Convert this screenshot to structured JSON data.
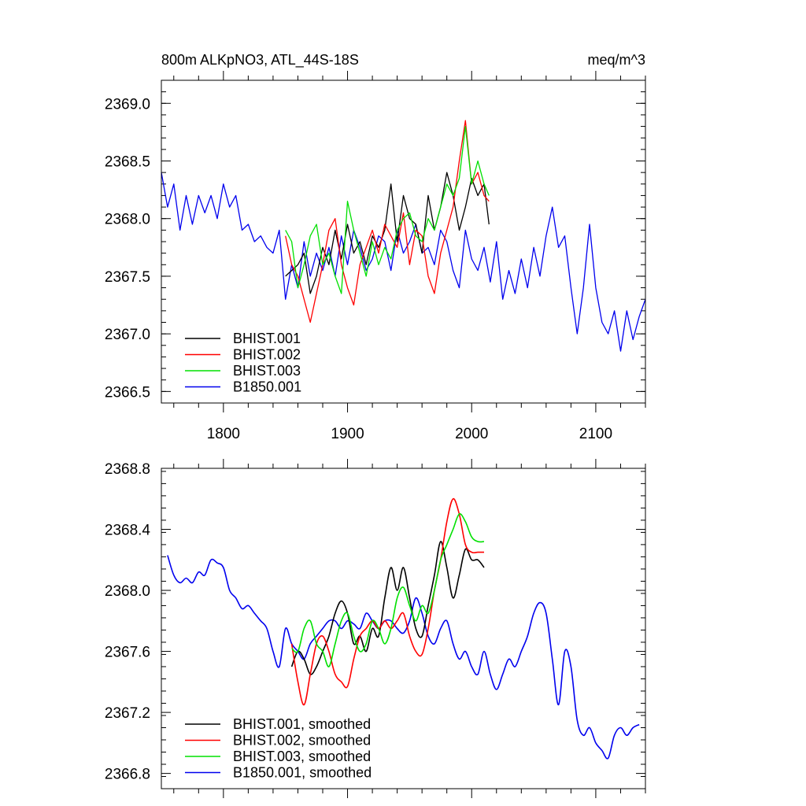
{
  "chart_data": [
    {
      "type": "line",
      "title": "800m ALKpNO3, ATL_44S-18S",
      "units": "meq/m^3",
      "xlabel": "",
      "ylabel": "",
      "xlim": [
        1750,
        2140
      ],
      "ylim": [
        2366.4,
        2369.2
      ],
      "xticks": [
        1800,
        1900,
        2000,
        2100
      ],
      "yticks": [
        2366.5,
        2367.0,
        2367.5,
        2368.0,
        2368.5,
        2369.0
      ],
      "ytick_labels": [
        "2366.5",
        "2367.0",
        "2367.5",
        "2368.0",
        "2368.5",
        "2369.0"
      ],
      "xtick_labels": [
        "1800",
        "1900",
        "2000",
        "2100"
      ],
      "legend_position": "bottom-left",
      "series": [
        {
          "name": "BHIST.001",
          "color": "#000000",
          "x": [
            1850,
            1855,
            1860,
            1865,
            1870,
            1875,
            1880,
            1885,
            1890,
            1895,
            1900,
            1905,
            1910,
            1915,
            1920,
            1925,
            1930,
            1935,
            1940,
            1945,
            1950,
            1955,
            1960,
            1965,
            1970,
            1975,
            1980,
            1985,
            1990,
            1995,
            2000,
            2005,
            2010,
            2014
          ],
          "y": [
            2367.5,
            2367.55,
            2367.6,
            2367.7,
            2367.35,
            2367.5,
            2367.75,
            2367.6,
            2367.9,
            2367.65,
            2367.95,
            2367.7,
            2367.8,
            2367.6,
            2367.85,
            2367.75,
            2367.9,
            2368.3,
            2367.8,
            2368.2,
            2368.0,
            2367.95,
            2367.7,
            2368.2,
            2367.9,
            2368.1,
            2368.4,
            2368.2,
            2367.9,
            2368.1,
            2368.35,
            2368.2,
            2368.3,
            2367.95
          ]
        },
        {
          "name": "BHIST.002",
          "color": "#ff0000",
          "x": [
            1850,
            1855,
            1860,
            1865,
            1870,
            1875,
            1880,
            1885,
            1890,
            1895,
            1900,
            1905,
            1910,
            1915,
            1920,
            1925,
            1930,
            1935,
            1940,
            1945,
            1950,
            1955,
            1960,
            1965,
            1970,
            1975,
            1980,
            1985,
            1990,
            1995,
            2000,
            2005,
            2010,
            2014
          ],
          "y": [
            2367.85,
            2367.6,
            2367.5,
            2367.3,
            2367.1,
            2367.35,
            2367.6,
            2367.9,
            2368.0,
            2367.6,
            2367.4,
            2367.25,
            2367.6,
            2367.75,
            2367.9,
            2367.7,
            2367.95,
            2367.85,
            2367.75,
            2368.05,
            2367.6,
            2367.9,
            2367.85,
            2367.5,
            2367.35,
            2367.7,
            2367.9,
            2368.1,
            2368.5,
            2368.85,
            2368.3,
            2368.4,
            2368.2,
            2368.15
          ]
        },
        {
          "name": "BHIST.003",
          "color": "#00e000",
          "x": [
            1850,
            1855,
            1860,
            1865,
            1870,
            1875,
            1880,
            1885,
            1890,
            1895,
            1900,
            1905,
            1910,
            1915,
            1920,
            1925,
            1930,
            1935,
            1940,
            1945,
            1950,
            1955,
            1960,
            1965,
            1970,
            1975,
            1980,
            1985,
            1990,
            1995,
            2000,
            2005,
            2010,
            2014
          ],
          "y": [
            2367.9,
            2367.8,
            2367.4,
            2367.6,
            2367.85,
            2367.95,
            2367.6,
            2367.7,
            2367.5,
            2367.35,
            2368.15,
            2367.9,
            2367.7,
            2367.5,
            2367.8,
            2367.6,
            2367.75,
            2367.65,
            2367.9,
            2368.0,
            2368.05,
            2367.85,
            2367.8,
            2368.0,
            2367.9,
            2368.1,
            2368.3,
            2368.2,
            2368.35,
            2368.8,
            2368.3,
            2368.5,
            2368.3,
            2368.2
          ]
        },
        {
          "name": "B1850.001",
          "color": "#0000ee",
          "x": [
            1750,
            1755,
            1760,
            1765,
            1770,
            1775,
            1780,
            1785,
            1790,
            1795,
            1800,
            1805,
            1810,
            1815,
            1820,
            1825,
            1830,
            1835,
            1840,
            1845,
            1850,
            1855,
            1860,
            1865,
            1870,
            1875,
            1880,
            1885,
            1890,
            1895,
            1900,
            1905,
            1910,
            1915,
            1920,
            1925,
            1930,
            1935,
            1940,
            1945,
            1950,
            1955,
            1960,
            1965,
            1970,
            1975,
            1980,
            1985,
            1990,
            1995,
            2000,
            2005,
            2010,
            2015,
            2020,
            2025,
            2030,
            2035,
            2040,
            2045,
            2050,
            2055,
            2060,
            2065,
            2070,
            2075,
            2080,
            2085,
            2090,
            2095,
            2100,
            2105,
            2110,
            2115,
            2120,
            2125,
            2130,
            2135,
            2140
          ],
          "y": [
            2368.4,
            2368.1,
            2368.3,
            2367.9,
            2368.2,
            2367.95,
            2368.2,
            2368.05,
            2368.2,
            2368.0,
            2368.3,
            2368.1,
            2368.2,
            2367.9,
            2367.95,
            2367.8,
            2367.85,
            2367.75,
            2367.7,
            2367.9,
            2367.3,
            2367.6,
            2367.4,
            2367.8,
            2367.5,
            2367.7,
            2367.55,
            2367.75,
            2367.5,
            2367.85,
            2367.6,
            2367.9,
            2367.75,
            2367.55,
            2367.65,
            2367.85,
            2367.8,
            2367.55,
            2367.9,
            2367.7,
            2367.8,
            2367.95,
            2367.7,
            2367.75,
            2367.6,
            2367.9,
            2367.8,
            2367.55,
            2367.4,
            2367.9,
            2367.65,
            2367.55,
            2367.75,
            2367.45,
            2367.8,
            2367.3,
            2367.55,
            2367.35,
            2367.65,
            2367.4,
            2367.75,
            2367.5,
            2367.85,
            2368.1,
            2367.75,
            2367.85,
            2367.4,
            2367.0,
            2367.4,
            2367.95,
            2367.4,
            2367.1,
            2367.0,
            2367.2,
            2366.85,
            2367.2,
            2366.95,
            2367.15,
            2367.3
          ]
        }
      ]
    },
    {
      "type": "line",
      "title": "",
      "xlabel": "",
      "ylabel": "",
      "xlim": [
        1750,
        2140
      ],
      "ylim": [
        2366.7,
        2368.8
      ],
      "xticks": [
        1800,
        1900,
        2000,
        2100
      ],
      "yticks": [
        2366.8,
        2367.2,
        2367.6,
        2368.0,
        2368.4,
        2368.8
      ],
      "ytick_labels": [
        "2366.8",
        "2367.2",
        "2367.6",
        "2368.0",
        "2368.4",
        "2368.8"
      ],
      "legend_position": "bottom-left",
      "series": [
        {
          "name": "BHIST.001, smoothed",
          "color": "#000000",
          "x": [
            1855,
            1860,
            1865,
            1870,
            1875,
            1880,
            1885,
            1890,
            1895,
            1900,
            1905,
            1910,
            1915,
            1920,
            1925,
            1930,
            1935,
            1940,
            1945,
            1950,
            1955,
            1960,
            1965,
            1970,
            1975,
            1980,
            1985,
            1990,
            1995,
            2000,
            2005,
            2010
          ],
          "y": [
            2367.5,
            2367.6,
            2367.55,
            2367.45,
            2367.5,
            2367.6,
            2367.7,
            2367.85,
            2367.93,
            2367.85,
            2367.65,
            2367.7,
            2367.6,
            2367.75,
            2367.7,
            2367.95,
            2368.15,
            2368.0,
            2368.15,
            2367.95,
            2367.75,
            2367.7,
            2367.9,
            2368.1,
            2368.32,
            2368.15,
            2367.95,
            2368.1,
            2368.27,
            2368.2,
            2368.2,
            2368.15
          ]
        },
        {
          "name": "BHIST.002, smoothed",
          "color": "#ff0000",
          "x": [
            1855,
            1860,
            1865,
            1870,
            1875,
            1880,
            1885,
            1890,
            1895,
            1900,
            1905,
            1910,
            1915,
            1920,
            1925,
            1930,
            1935,
            1940,
            1945,
            1950,
            1955,
            1960,
            1965,
            1970,
            1975,
            1980,
            1985,
            1990,
            1995,
            2000,
            2005,
            2010
          ],
          "y": [
            2367.65,
            2367.4,
            2367.25,
            2367.45,
            2367.65,
            2367.7,
            2367.6,
            2367.45,
            2367.4,
            2367.37,
            2367.55,
            2367.7,
            2367.75,
            2367.8,
            2367.75,
            2367.8,
            2367.75,
            2367.8,
            2367.85,
            2367.7,
            2367.6,
            2367.58,
            2367.75,
            2368.0,
            2368.2,
            2368.45,
            2368.6,
            2368.5,
            2368.3,
            2368.25,
            2368.25,
            2368.25
          ]
        },
        {
          "name": "BHIST.003, smoothed",
          "color": "#00e000",
          "x": [
            1855,
            1860,
            1865,
            1870,
            1875,
            1880,
            1885,
            1890,
            1895,
            1900,
            1905,
            1910,
            1915,
            1920,
            1925,
            1930,
            1935,
            1940,
            1945,
            1950,
            1955,
            1960,
            1965,
            1970,
            1975,
            1980,
            1985,
            1990,
            1995,
            2000,
            2005,
            2010
          ],
          "y": [
            2367.62,
            2367.6,
            2367.75,
            2367.8,
            2367.65,
            2367.6,
            2367.5,
            2367.65,
            2367.8,
            2367.85,
            2367.7,
            2367.6,
            2367.65,
            2367.8,
            2367.75,
            2367.65,
            2367.75,
            2367.95,
            2368.02,
            2367.9,
            2367.8,
            2367.9,
            2367.85,
            2368.0,
            2368.2,
            2368.3,
            2368.4,
            2368.5,
            2368.45,
            2368.35,
            2368.32,
            2368.32
          ]
        },
        {
          "name": "B1850.001, smoothed",
          "color": "#0000ee",
          "x": [
            1755,
            1760,
            1765,
            1770,
            1775,
            1780,
            1785,
            1790,
            1795,
            1800,
            1805,
            1810,
            1815,
            1820,
            1825,
            1830,
            1835,
            1840,
            1845,
            1850,
            1855,
            1860,
            1865,
            1870,
            1875,
            1880,
            1885,
            1890,
            1895,
            1900,
            1905,
            1910,
            1915,
            1920,
            1925,
            1930,
            1935,
            1940,
            1945,
            1950,
            1955,
            1960,
            1965,
            1970,
            1975,
            1980,
            1985,
            1990,
            1995,
            2000,
            2005,
            2010,
            2015,
            2020,
            2025,
            2030,
            2035,
            2040,
            2045,
            2050,
            2055,
            2060,
            2065,
            2070,
            2075,
            2080,
            2085,
            2090,
            2095,
            2100,
            2105,
            2110,
            2115,
            2120,
            2125,
            2130,
            2135
          ],
          "y": [
            2368.23,
            2368.1,
            2368.05,
            2368.08,
            2368.05,
            2368.12,
            2368.1,
            2368.2,
            2368.18,
            2368.15,
            2368.0,
            2367.95,
            2367.88,
            2367.9,
            2367.85,
            2367.8,
            2367.75,
            2367.6,
            2367.5,
            2367.75,
            2367.65,
            2367.6,
            2367.55,
            2367.65,
            2367.7,
            2367.75,
            2367.8,
            2367.8,
            2367.75,
            2367.8,
            2367.78,
            2367.75,
            2367.85,
            2367.8,
            2367.75,
            2367.8,
            2367.8,
            2367.75,
            2367.72,
            2367.8,
            2367.95,
            2367.85,
            2367.7,
            2367.65,
            2367.75,
            2367.8,
            2367.65,
            2367.55,
            2367.6,
            2367.5,
            2367.45,
            2367.6,
            2367.45,
            2367.35,
            2367.45,
            2367.55,
            2367.5,
            2367.6,
            2367.7,
            2367.85,
            2367.92,
            2367.85,
            2367.55,
            2367.25,
            2367.6,
            2367.5,
            2367.15,
            2367.05,
            2367.1,
            2367.0,
            2366.95,
            2366.9,
            2367.05,
            2367.1,
            2367.05,
            2367.1,
            2367.12
          ]
        }
      ]
    }
  ]
}
